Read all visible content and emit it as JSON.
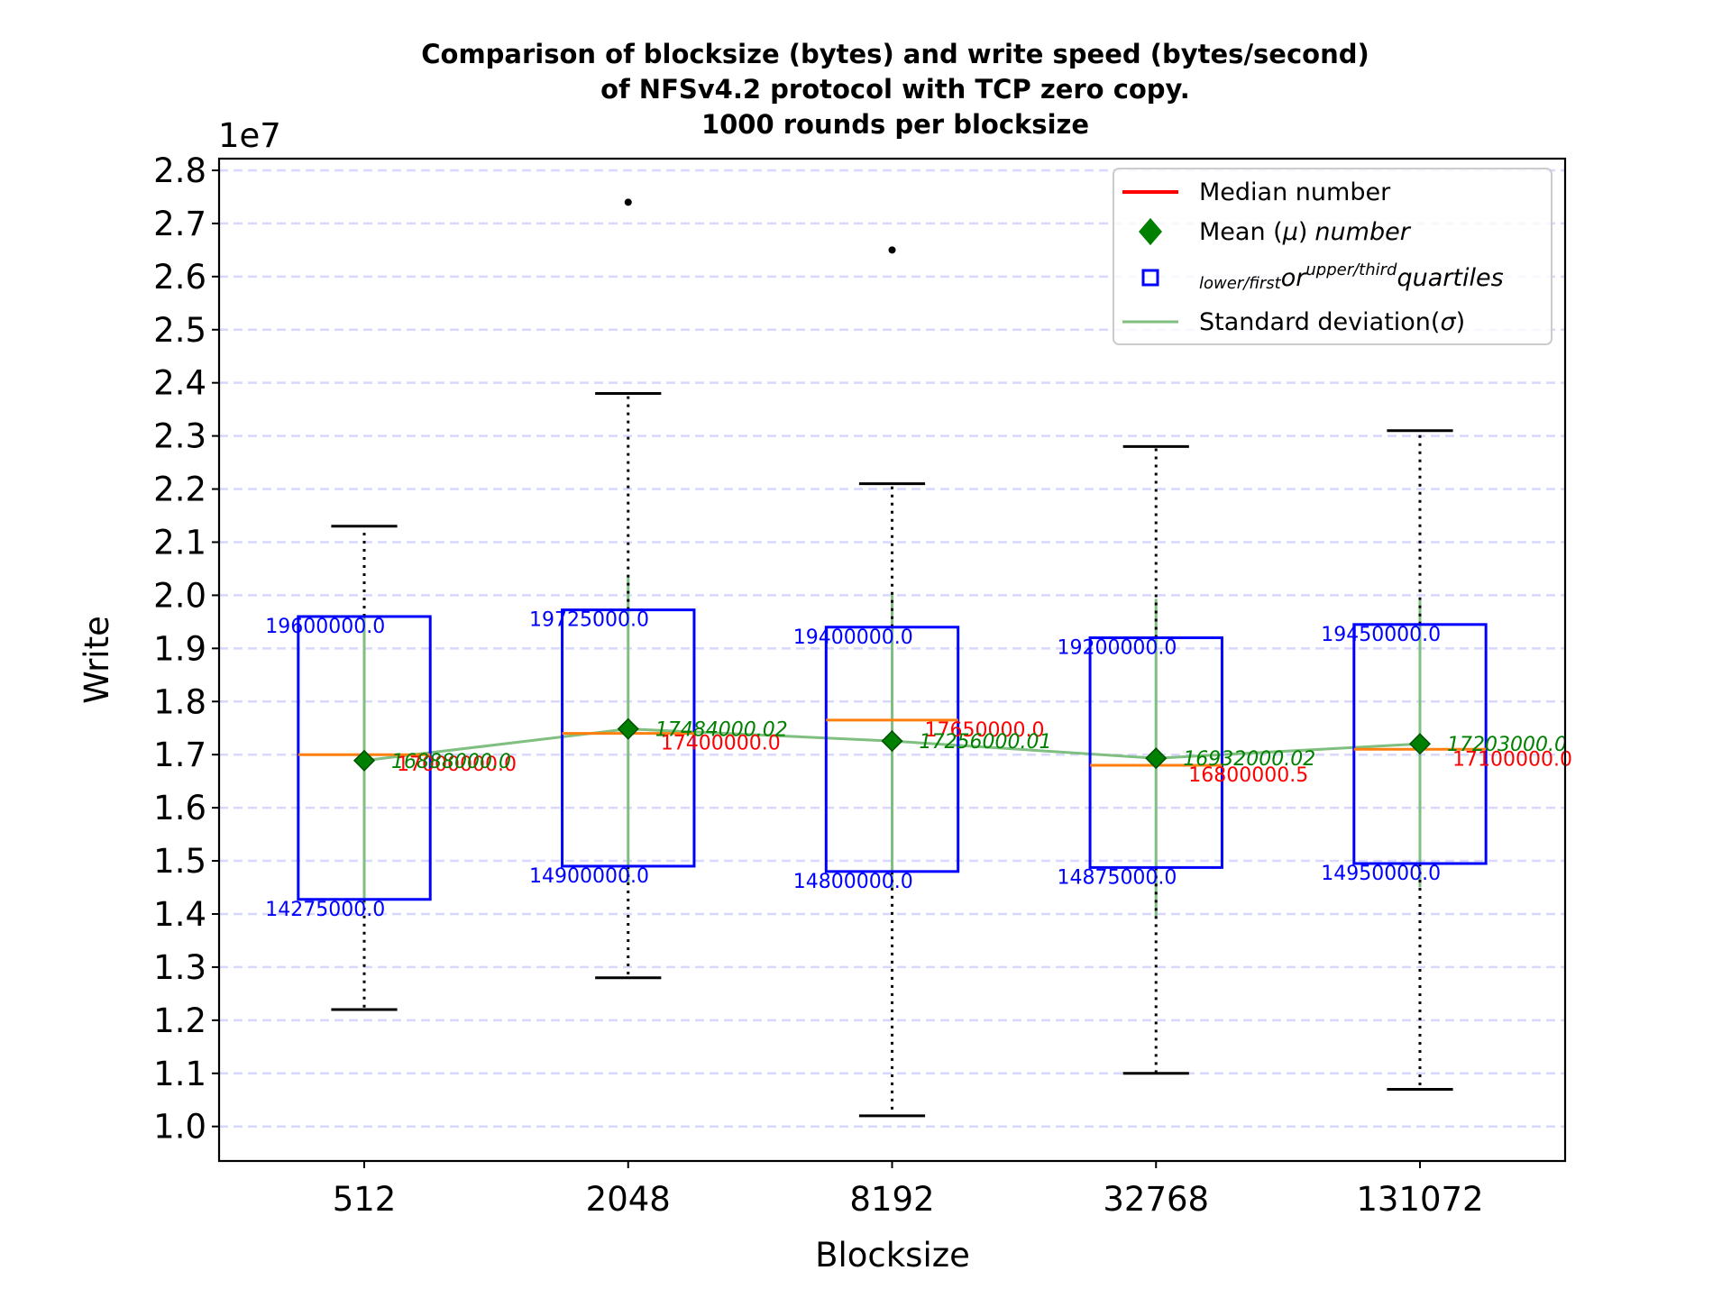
{
  "chart_data": {
    "type": "box",
    "title_lines": [
      "Comparison of blocksize (bytes) and write speed (bytes/second)",
      "of NFSv4.2 protocol with TCP zero copy.",
      "1000 rounds per blocksize"
    ],
    "xlabel": "Blocksize",
    "ylabel": "Write",
    "y_offset_label": "1e7",
    "ylim": [
      0.935,
      2.822
    ],
    "y_ticks": [
      1.0,
      1.1,
      1.2,
      1.3,
      1.4,
      1.5,
      1.6,
      1.7,
      1.8,
      1.9,
      2.0,
      2.1,
      2.2,
      2.3,
      2.4,
      2.5,
      2.6,
      2.7,
      2.8
    ],
    "y_tick_labels": [
      "1.0",
      "1.1",
      "1.2",
      "1.3",
      "1.4",
      "1.5",
      "1.6",
      "1.7",
      "1.8",
      "1.9",
      "2.0",
      "2.1",
      "2.2",
      "2.3",
      "2.4",
      "2.5",
      "2.6",
      "2.7",
      "2.8"
    ],
    "grid": "horizontal dashed",
    "legend_position": "top-right",
    "categories": [
      "512",
      "2048",
      "8192",
      "32768",
      "131072"
    ],
    "boxes": [
      {
        "category": "512",
        "whisker_low": 1.22,
        "q1": 1.4275,
        "median": 1.7,
        "mean": 1.6888,
        "q3": 1.96,
        "whisker_high": 2.13,
        "std": 0.27,
        "outliers": [],
        "q1_label": "14275000.0",
        "q3_label": "19600000.0",
        "median_label": "17000000.0",
        "mean_label": "16888000.0"
      },
      {
        "category": "2048",
        "whisker_low": 1.28,
        "q1": 1.49,
        "median": 1.74,
        "mean": 1.7484,
        "q3": 1.9725,
        "whisker_high": 2.38,
        "std": 0.29,
        "outliers": [
          2.74
        ],
        "q1_label": "14900000.0",
        "q3_label": "19725000.0",
        "median_label": "17400000.0",
        "mean_label": "17484000.02"
      },
      {
        "category": "8192",
        "whisker_low": 1.02,
        "q1": 1.48,
        "median": 1.765,
        "mean": 1.7256,
        "q3": 1.94,
        "whisker_high": 2.21,
        "std": 0.28,
        "outliers": [
          2.65
        ],
        "q1_label": "14800000.0",
        "q3_label": "19400000.0",
        "median_label": "17650000.0",
        "mean_label": "17256000.01"
      },
      {
        "category": "32768",
        "whisker_low": 1.1,
        "q1": 1.4875,
        "median": 1.68,
        "mean": 1.6932,
        "q3": 1.92,
        "whisker_high": 2.28,
        "std": 0.3,
        "outliers": [],
        "q1_label": "14875000.0",
        "q3_label": "19200000.0",
        "median_label": "16800000.5",
        "mean_label": "16932000.02"
      },
      {
        "category": "131072",
        "whisker_low": 1.07,
        "q1": 1.495,
        "median": 1.71,
        "mean": 1.7203,
        "q3": 1.945,
        "whisker_high": 2.31,
        "std": 0.27,
        "outliers": [],
        "q1_label": "14950000.0",
        "q3_label": "19450000.0",
        "median_label": "17100000.0",
        "mean_label": "17203000.0"
      }
    ],
    "legend": {
      "median": "Median number",
      "mean_prefix": "Mean (",
      "mean_mu": "μ",
      "mean_close": ")",
      "mean_suffix": "number",
      "quartile_sub1": "lower/first",
      "quartile_or": "or",
      "quartile_sup": "upper/third",
      "quartile_word": "quartiles",
      "std_prefix": "Standard deviation(",
      "std_sigma": "σ",
      "std_close": ")"
    },
    "colors": {
      "box": "#0000ff",
      "median": "#ff7f0e",
      "median_legend": "#ff0000",
      "median_label": "#ff0000",
      "mean": "#008000",
      "std": "#7fbf7f",
      "quartile_label": "#0000ff",
      "grid": "#d8d8ff",
      "whisker": "#000000"
    }
  }
}
